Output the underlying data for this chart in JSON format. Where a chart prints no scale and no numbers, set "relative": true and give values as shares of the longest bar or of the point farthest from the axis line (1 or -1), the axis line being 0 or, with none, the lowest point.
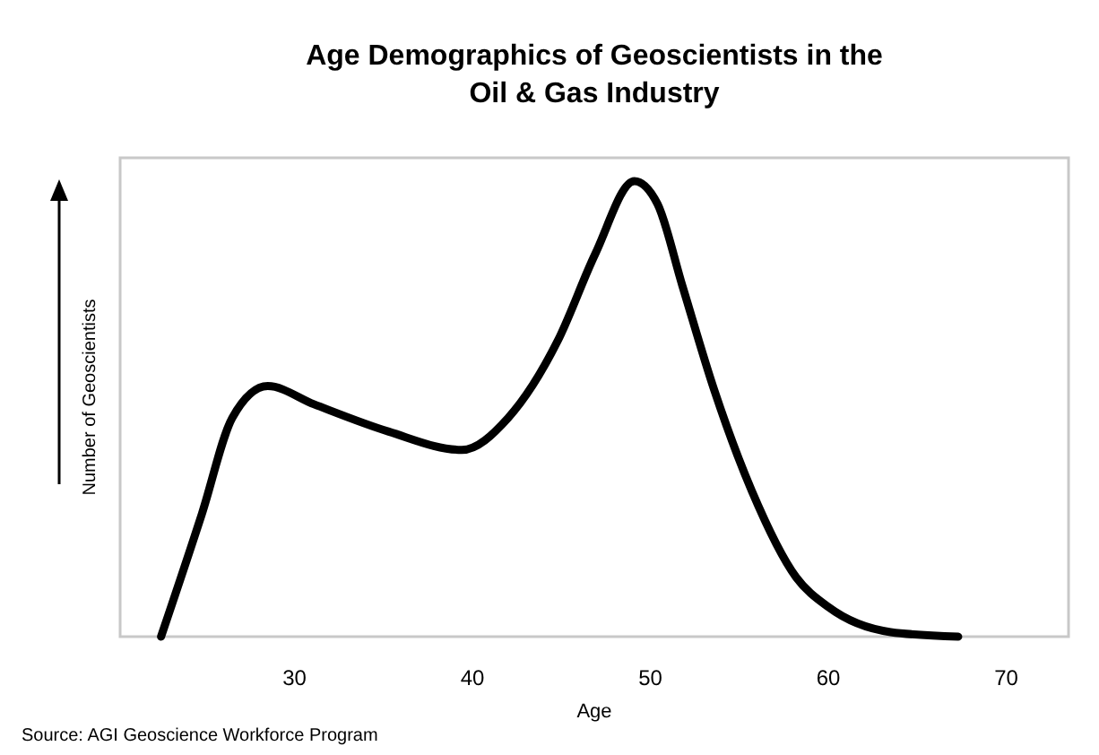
{
  "chart_data": {
    "type": "line",
    "title": "Age Demographics of Geoscientists in the\nOil & Gas Industry",
    "xlabel": "Age",
    "ylabel": "Number of Geoscientists",
    "relative": true,
    "xlim": [
      20.2,
      73.5
    ],
    "xticks": [
      30,
      40,
      50,
      60,
      70
    ],
    "grid": false,
    "marker": "none",
    "line_style": "solid",
    "series": [
      {
        "color": "#000000",
        "x": [
          22.5,
          24.8,
          26.5,
          28.5,
          31.1,
          35.3,
          39.4,
          42.0,
          44.8,
          46.9,
          49.1,
          50.4,
          51.8,
          53.6,
          55.7,
          58.2,
          60.0,
          63.5,
          67.3
        ],
        "values": [
          0,
          0.27,
          0.48,
          0.55,
          0.51,
          0.45,
          0.41,
          0.48,
          0.65,
          0.84,
          1.0,
          0.95,
          0.77,
          0.54,
          0.32,
          0.13,
          0.065,
          0.01,
          0
        ]
      }
    ],
    "annotations": [
      "Source: AGI Geoscience Workforce Program"
    ]
  }
}
